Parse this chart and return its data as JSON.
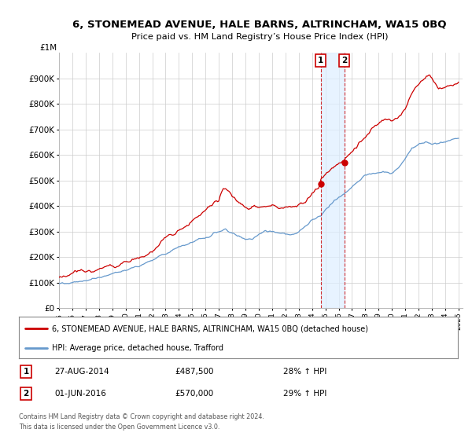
{
  "title": "6, STONEMEAD AVENUE, HALE BARNS, ALTRINCHAM, WA15 0BQ",
  "subtitle": "Price paid vs. HM Land Registry’s House Price Index (HPI)",
  "hpi_label": "HPI: Average price, detached house, Trafford",
  "property_label": "6, STONEMEAD AVENUE, HALE BARNS, ALTRINCHAM, WA15 0BQ (detached house)",
  "sale1_date": "27-AUG-2014",
  "sale1_price": "£487,500",
  "sale1_hpi": "28% ↑ HPI",
  "sale2_date": "01-JUN-2016",
  "sale2_price": "£570,000",
  "sale2_hpi": "29% ↑ HPI",
  "footnote1": "Contains HM Land Registry data © Crown copyright and database right 2024.",
  "footnote2": "This data is licensed under the Open Government Licence v3.0.",
  "ylim": [
    0,
    1000000
  ],
  "yticks": [
    0,
    100000,
    200000,
    300000,
    400000,
    500000,
    600000,
    700000,
    800000,
    900000
  ],
  "ytick_labels": [
    "£0",
    "£100K",
    "£200K",
    "£300K",
    "£400K",
    "£500K",
    "£600K",
    "£700K",
    "£800K",
    "£900K"
  ],
  "top_label": "£1M",
  "hpi_color": "#6699cc",
  "property_color": "#cc0000",
  "shade_color": "#ddeeff",
  "sale1_x": 2014.65,
  "sale1_y": 487500,
  "sale2_x": 2016.42,
  "sale2_y": 570000,
  "background_color": "#ffffff",
  "grid_color": "#cccccc",
  "xtick_years": [
    1995,
    1996,
    1997,
    1998,
    1999,
    2000,
    2001,
    2002,
    2003,
    2004,
    2005,
    2006,
    2007,
    2008,
    2009,
    2010,
    2011,
    2012,
    2013,
    2014,
    2015,
    2016,
    2017,
    2018,
    2019,
    2020,
    2021,
    2022,
    2023,
    2024,
    2025
  ]
}
